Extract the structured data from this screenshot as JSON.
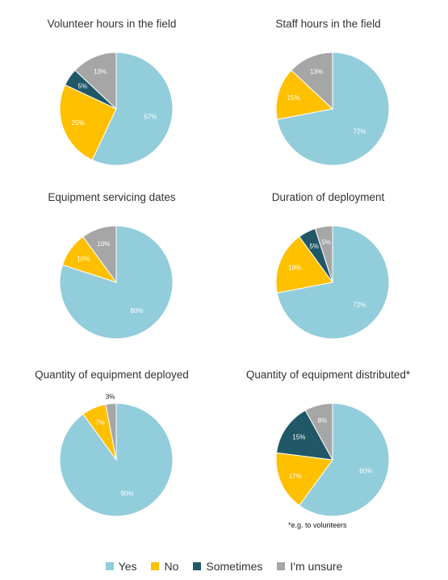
{
  "colors": {
    "Yes": "#92CDDC",
    "No": "#FFC000",
    "Sometimes": "#215868",
    "I'm unsure": "#A6A6A6"
  },
  "legend": [
    "Yes",
    "No",
    "Sometimes",
    "I'm unsure"
  ],
  "footnote": "*e.g. to volunteers",
  "chart_data": [
    {
      "type": "pie",
      "title": "Volunteer hours in the field",
      "labels": [
        "Yes",
        "No",
        "Sometimes",
        "I'm unsure"
      ],
      "values": [
        57,
        25,
        5,
        13
      ],
      "value_labels": [
        "57%",
        "25%",
        "5%",
        "13%"
      ]
    },
    {
      "type": "pie",
      "title": "Staff hours in the field",
      "labels": [
        "Yes",
        "No",
        "I'm unsure"
      ],
      "values": [
        72,
        15,
        13
      ],
      "value_labels": [
        "72%",
        "15%",
        "13%"
      ]
    },
    {
      "type": "pie",
      "title": "Equipment servicing dates",
      "labels": [
        "Yes",
        "No",
        "I'm unsure"
      ],
      "values": [
        80,
        10,
        10
      ],
      "value_labels": [
        "80%",
        "10%",
        "10%"
      ]
    },
    {
      "type": "pie",
      "title": "Duration of deployment",
      "labels": [
        "Yes",
        "No",
        "Sometimes",
        "I'm unsure"
      ],
      "values": [
        72,
        18,
        5,
        5
      ],
      "value_labels": [
        "72%",
        "18%",
        "5%",
        "5%"
      ]
    },
    {
      "type": "pie",
      "title": "Quantity of equipment deployed",
      "labels": [
        "Yes",
        "No",
        "I'm unsure"
      ],
      "values": [
        90,
        7,
        3
      ],
      "value_labels": [
        "90%",
        "7%",
        "3%"
      ]
    },
    {
      "type": "pie",
      "title": "Quantity of equipment distributed*",
      "labels": [
        "Yes",
        "No",
        "Sometimes",
        "I'm unsure"
      ],
      "values": [
        60,
        17,
        15,
        8
      ],
      "value_labels": [
        "60%",
        "17%",
        "15%",
        "8%"
      ]
    }
  ]
}
